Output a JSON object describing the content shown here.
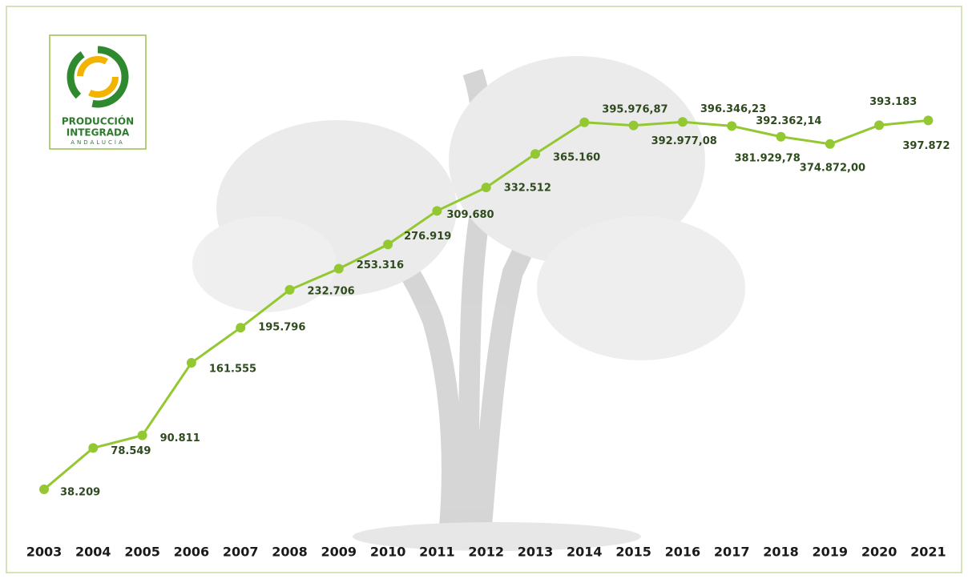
{
  "logo": {
    "line1": "PRODUCCIÓN",
    "line2": "INTEGRADA",
    "line3": "ANDALUCÍA"
  },
  "chart_data": {
    "type": "line",
    "categories": [
      "2003",
      "2004",
      "2005",
      "2006",
      "2007",
      "2008",
      "2009",
      "2010",
      "2011",
      "2012",
      "2013",
      "2014",
      "2015",
      "2016",
      "2017",
      "2018",
      "2019",
      "2020",
      "2021"
    ],
    "values": [
      38209,
      78549,
      90811,
      161555,
      195796,
      232706,
      253316,
      276919,
      309680,
      332512,
      365160,
      395976.87,
      392977.08,
      396346.23,
      392362.14,
      381929.78,
      374872.0,
      393183,
      397872
    ],
    "value_labels": [
      "38.209",
      "78.549",
      "90.811",
      "161.555",
      "195.796",
      "232.706",
      "253.316",
      "276.919",
      "309.680",
      "332.512",
      "365.160",
      "395.976,87",
      "392.977,08",
      "396.346,23",
      "392.362,14",
      "381.929,78",
      "374.872,00",
      "393.183",
      "397.872"
    ],
    "color": "#94c832",
    "ylim": [
      0,
      420000
    ]
  }
}
